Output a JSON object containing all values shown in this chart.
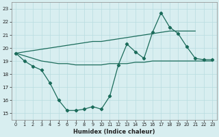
{
  "x": [
    0,
    1,
    2,
    3,
    4,
    5,
    6,
    7,
    8,
    9,
    10,
    11,
    12,
    13,
    14,
    15,
    16,
    17,
    18,
    19,
    20,
    21,
    22,
    23
  ],
  "line_wavy": [
    19.6,
    19.0,
    18.6,
    18.3,
    17.3,
    16.0,
    15.2,
    15.2,
    15.3,
    15.5,
    15.3,
    16.3,
    18.7,
    20.3,
    19.7,
    19.2,
    21.2,
    22.7,
    21.6,
    21.1,
    20.1,
    19.2,
    19.1,
    19.1
  ],
  "line_flat": [
    19.6,
    19.4,
    19.2,
    19.0,
    18.9,
    18.8,
    18.8,
    18.7,
    18.7,
    18.7,
    18.7,
    18.8,
    18.8,
    18.8,
    18.9,
    18.9,
    19.0,
    19.0,
    19.0,
    19.0,
    19.0,
    19.0,
    19.0,
    19.0
  ],
  "line_rising": [
    19.6,
    19.7,
    19.8,
    19.9,
    20.0,
    20.1,
    20.2,
    20.3,
    20.4,
    20.5,
    20.5,
    20.6,
    20.7,
    20.8,
    20.9,
    21.0,
    21.1,
    21.2,
    21.3,
    21.3,
    21.3,
    21.3,
    null,
    null
  ],
  "xlim": [
    -0.5,
    23.5
  ],
  "ylim": [
    14.5,
    23.5
  ],
  "yticks": [
    15,
    16,
    17,
    18,
    19,
    20,
    21,
    22,
    23
  ],
  "xticks": [
    0,
    1,
    2,
    3,
    4,
    5,
    6,
    7,
    8,
    9,
    10,
    11,
    12,
    13,
    14,
    15,
    16,
    17,
    18,
    19,
    20,
    21,
    22,
    23
  ],
  "xlabel": "Humidex (Indice chaleur)",
  "line_color": "#1a6b5a",
  "bg_color": "#d8eef0",
  "grid_color": "#b8dce0"
}
